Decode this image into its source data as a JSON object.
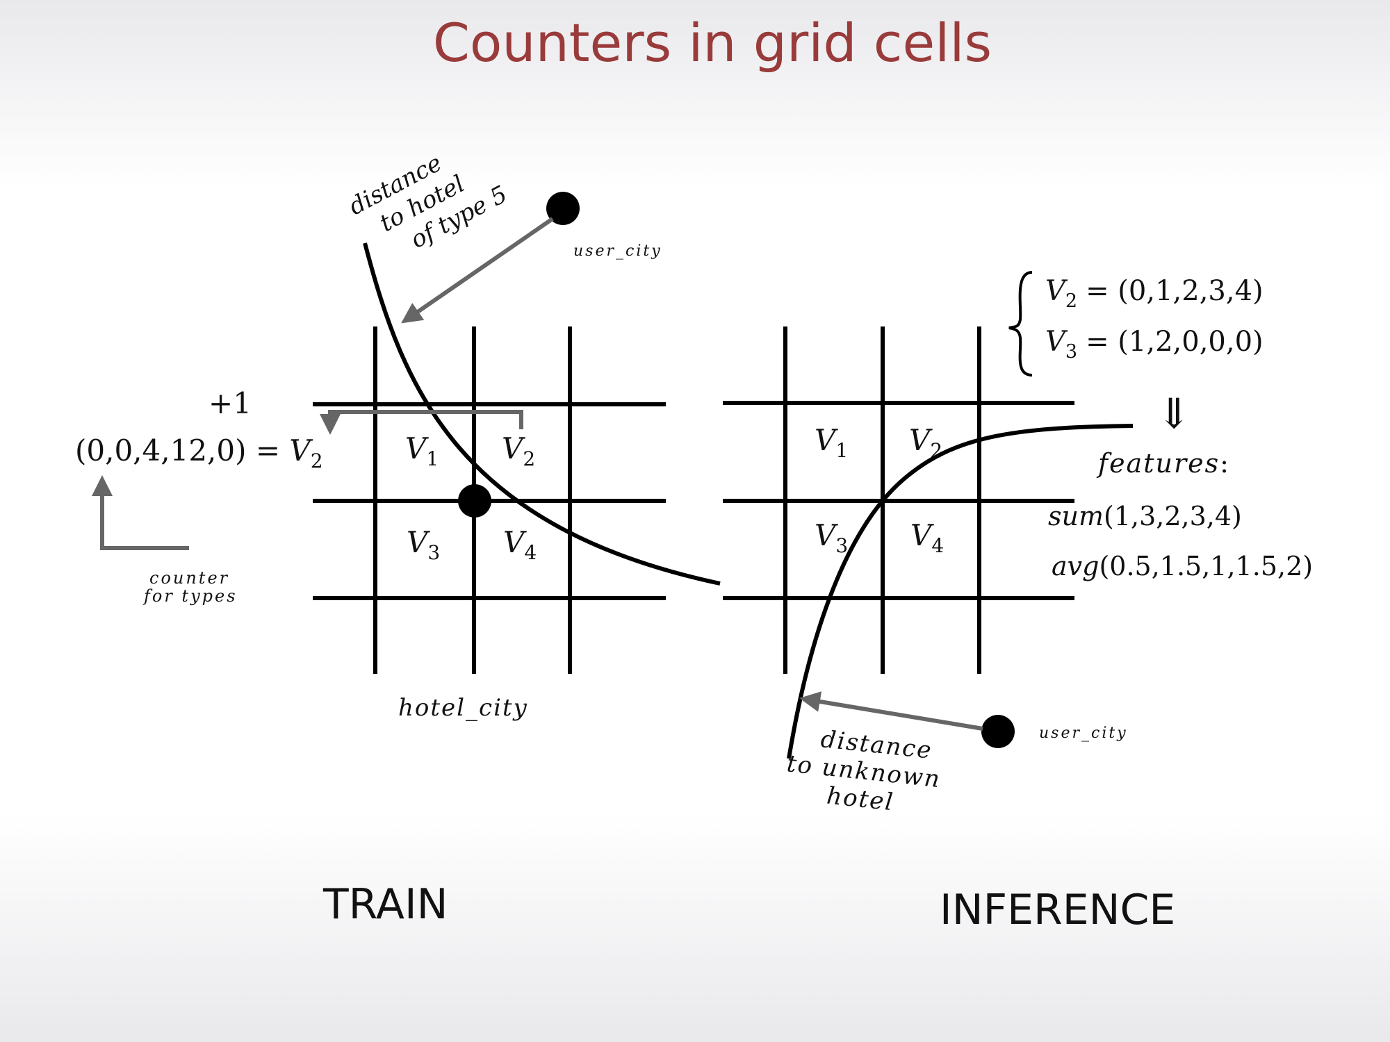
{
  "title": "Counters in grid cells",
  "train": {
    "section_label": "TRAIN",
    "grid_cells": [
      "V1",
      "V2",
      "V3",
      "V4"
    ],
    "cell_letters": [
      "V",
      "V",
      "V",
      "V"
    ],
    "cell_subscripts": [
      "1",
      "2",
      "3",
      "4"
    ],
    "curve_label_lines": [
      "distance",
      "to hotel",
      "of type 5"
    ],
    "user_label": "user_city",
    "hotel_label": "hotel_city",
    "increment": "+1",
    "vector_eq": "(0,0,4,12,0) = ",
    "vector_var": "V",
    "vector_sub": "2",
    "counter_label_lines": [
      "counter",
      "for types"
    ]
  },
  "inference": {
    "section_label": "INFERENCE",
    "cell_letters": [
      "V",
      "V",
      "V",
      "V"
    ],
    "cell_subscripts": [
      "1",
      "2",
      "3",
      "4"
    ],
    "system": [
      {
        "var": "V",
        "sub": "2",
        "rhs": "= (0,1,2,3,4)"
      },
      {
        "var": "V",
        "sub": "3",
        "rhs": "= (1,2,0,0,0)"
      }
    ],
    "implies": "⇓",
    "features_label": "features",
    "features_colon": ":",
    "sum_fn": "sum",
    "sum_args": "(1,3,2,3,4)",
    "avg_fn": "avg",
    "avg_args": "(0.5,1.5,1,1.5,2)",
    "curve_label_lines": [
      "distance",
      "to unknown",
      "hotel"
    ],
    "user_label": "user_city"
  }
}
